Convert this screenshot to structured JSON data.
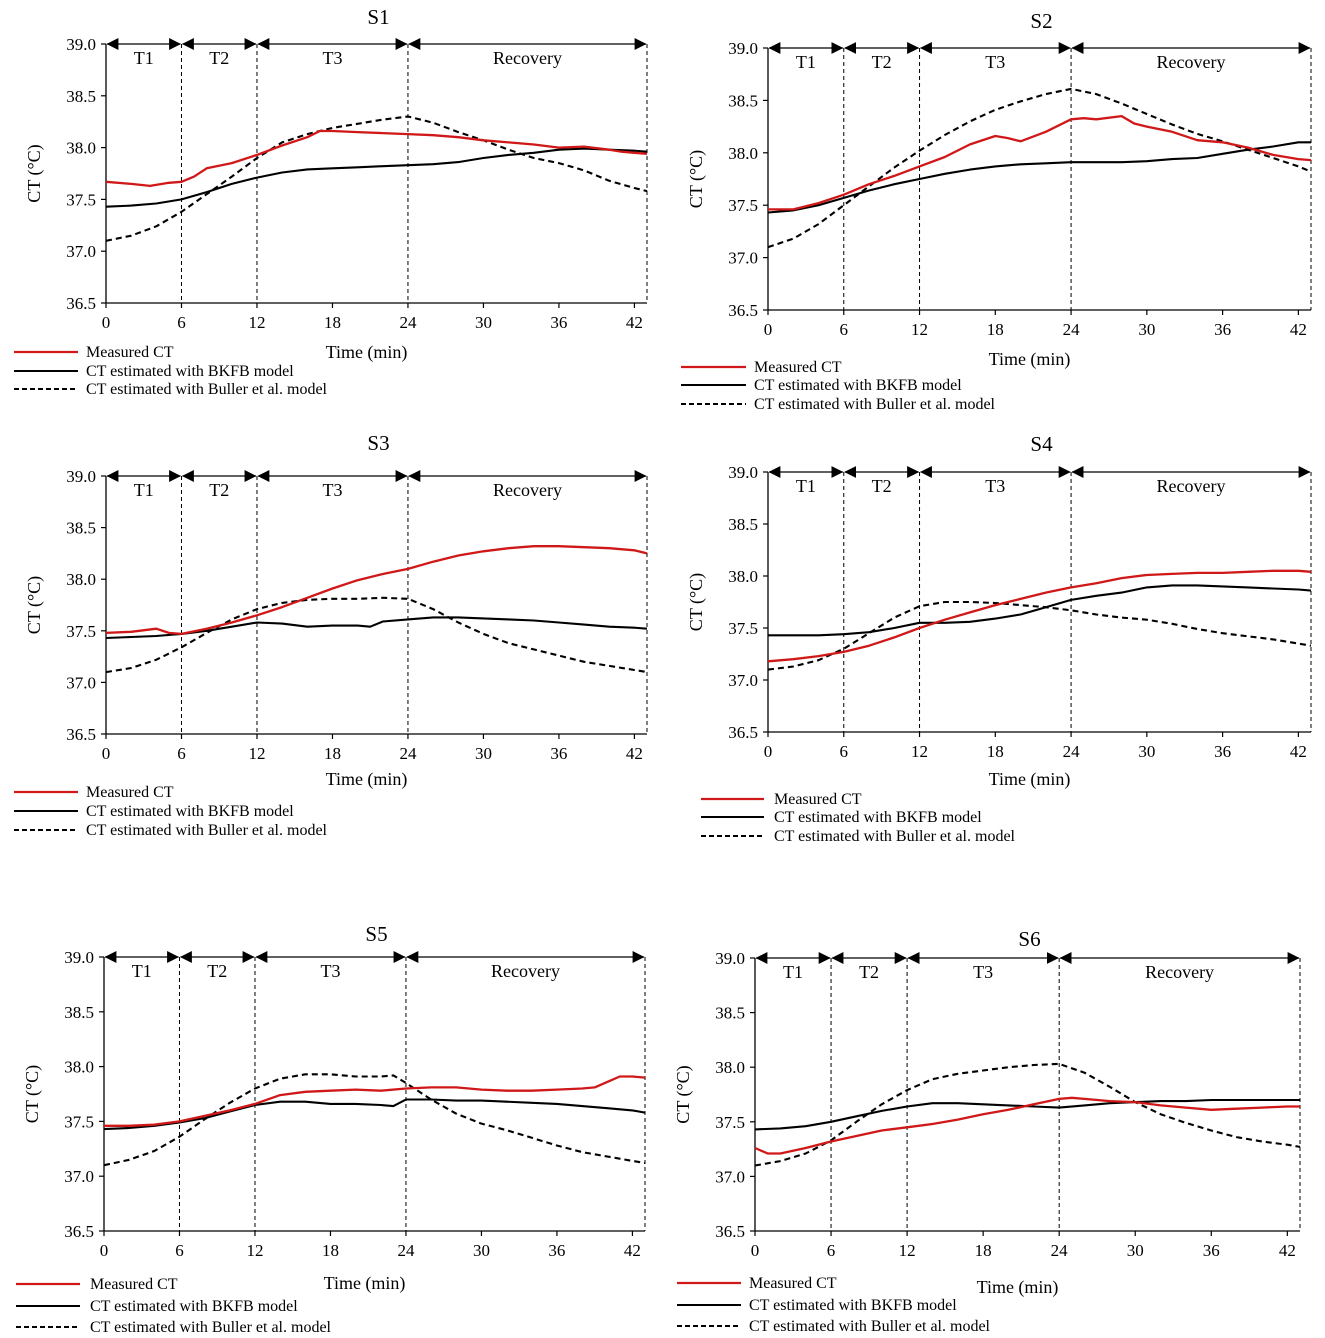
{
  "figure": {
    "x_ticks": [
      0,
      6,
      12,
      18,
      24,
      30,
      36,
      42
    ],
    "y_ticks": [
      "36.5",
      "37.0",
      "37.5",
      "38.0",
      "38.5",
      "39.0"
    ],
    "phase_bounds": [
      0,
      6,
      12,
      24,
      43
    ],
    "phases": [
      "T1",
      "T2",
      "T3",
      "Recovery"
    ],
    "colors": {
      "measured": "#d01818",
      "bkfb": "#000000",
      "buller": "#000000"
    }
  },
  "chart_data": [
    {
      "type": "line",
      "title": "S1",
      "xlabel": "Time (min)",
      "ylabel": "CT (°C)",
      "xlim": [
        0,
        43
      ],
      "ylim": [
        36.5,
        39.0
      ],
      "legend": [
        "Measured CT",
        "CT estimated with BKFB model",
        "CT estimated with Buller et al. model"
      ],
      "series": [
        {
          "name": "Measured CT",
          "x": [
            0,
            2,
            3.5,
            5,
            6,
            7,
            8,
            10,
            12,
            14,
            16,
            17,
            18,
            20,
            22,
            24,
            26,
            28,
            30,
            32,
            34,
            36,
            38,
            40,
            41,
            42,
            43
          ],
          "y": [
            37.67,
            37.65,
            37.63,
            37.66,
            37.67,
            37.72,
            37.8,
            37.85,
            37.93,
            38.02,
            38.1,
            38.16,
            38.16,
            38.15,
            38.14,
            38.13,
            38.12,
            38.1,
            38.07,
            38.05,
            38.03,
            38.0,
            38.01,
            37.98,
            37.96,
            37.95,
            37.94
          ]
        },
        {
          "name": "CT estimated with BKFB model",
          "x": [
            0,
            2,
            4,
            6,
            8,
            10,
            12,
            14,
            16,
            18,
            20,
            22,
            24,
            26,
            28,
            30,
            32,
            34,
            36,
            38,
            40,
            42,
            43
          ],
          "y": [
            37.43,
            37.44,
            37.46,
            37.5,
            37.57,
            37.65,
            37.71,
            37.76,
            37.79,
            37.8,
            37.81,
            37.82,
            37.83,
            37.84,
            37.86,
            37.9,
            37.93,
            37.95,
            37.98,
            37.99,
            37.98,
            37.97,
            37.96
          ]
        },
        {
          "name": "CT estimated with Buller et al. model",
          "x": [
            0,
            2,
            4,
            6,
            8,
            10,
            12,
            14,
            16,
            18,
            20,
            22,
            24,
            26,
            28,
            30,
            32,
            34,
            36,
            38,
            40,
            42,
            43
          ],
          "y": [
            37.1,
            37.15,
            37.24,
            37.38,
            37.55,
            37.72,
            37.9,
            38.05,
            38.13,
            38.19,
            38.23,
            38.27,
            38.3,
            38.24,
            38.15,
            38.07,
            37.98,
            37.9,
            37.85,
            37.78,
            37.68,
            37.61,
            37.58
          ]
        }
      ]
    },
    {
      "type": "line",
      "title": "S2",
      "xlabel": "Time (min)",
      "ylabel": "CT (°C)",
      "xlim": [
        0,
        43
      ],
      "ylim": [
        36.5,
        39.0
      ],
      "legend": [
        "Measured CT",
        "CT estimated with BKFB model",
        "CT estimated with Buller et al. model"
      ],
      "series": [
        {
          "name": "Measured CT",
          "x": [
            0,
            2,
            4,
            6,
            8,
            10,
            12,
            14,
            16,
            18,
            19,
            20,
            22,
            24,
            25,
            26,
            28,
            29,
            30,
            32,
            34,
            36,
            38,
            40,
            42,
            43
          ],
          "y": [
            37.46,
            37.46,
            37.52,
            37.6,
            37.7,
            37.78,
            37.87,
            37.96,
            38.08,
            38.16,
            38.14,
            38.11,
            38.2,
            38.32,
            38.33,
            38.32,
            38.35,
            38.28,
            38.25,
            38.2,
            38.12,
            38.1,
            38.05,
            37.98,
            37.94,
            37.93
          ]
        },
        {
          "name": "CT estimated with BKFB model",
          "x": [
            0,
            2,
            4,
            6,
            8,
            10,
            12,
            14,
            16,
            18,
            20,
            22,
            24,
            26,
            28,
            30,
            32,
            34,
            36,
            38,
            40,
            42,
            43
          ],
          "y": [
            37.43,
            37.45,
            37.5,
            37.57,
            37.64,
            37.7,
            37.75,
            37.8,
            37.84,
            37.87,
            37.89,
            37.9,
            37.91,
            37.91,
            37.91,
            37.92,
            37.94,
            37.95,
            37.99,
            38.03,
            38.06,
            38.1,
            38.1
          ]
        },
        {
          "name": "CT estimated with Buller et al. model",
          "x": [
            0,
            2,
            4,
            6,
            8,
            10,
            12,
            14,
            16,
            18,
            20,
            22,
            24,
            26,
            28,
            30,
            32,
            34,
            36,
            38,
            40,
            42,
            43
          ],
          "y": [
            37.1,
            37.18,
            37.32,
            37.5,
            37.68,
            37.86,
            38.02,
            38.17,
            38.3,
            38.41,
            38.49,
            38.56,
            38.61,
            38.56,
            38.47,
            38.37,
            38.27,
            38.18,
            38.11,
            38.03,
            37.95,
            37.87,
            37.82
          ]
        }
      ]
    },
    {
      "type": "line",
      "title": "S3",
      "xlabel": "Time (min)",
      "ylabel": "CT (°C)",
      "xlim": [
        0,
        43
      ],
      "ylim": [
        36.5,
        39.0
      ],
      "legend": [
        "Measured CT",
        "CT estimated with BKFB model",
        "CT estimated with Buller et al. model"
      ],
      "series": [
        {
          "name": "Measured CT",
          "x": [
            0,
            2,
            4,
            5,
            6,
            8,
            10,
            12,
            14,
            16,
            18,
            20,
            22,
            24,
            26,
            28,
            30,
            32,
            34,
            36,
            38,
            40,
            42,
            43
          ],
          "y": [
            37.48,
            37.49,
            37.52,
            37.48,
            37.47,
            37.52,
            37.58,
            37.65,
            37.73,
            37.82,
            37.91,
            37.99,
            38.05,
            38.1,
            38.17,
            38.23,
            38.27,
            38.3,
            38.32,
            38.32,
            38.31,
            38.3,
            38.28,
            38.25
          ]
        },
        {
          "name": "CT estimated with BKFB model",
          "x": [
            0,
            2,
            4,
            6,
            8,
            10,
            12,
            14,
            16,
            18,
            20,
            21,
            22,
            24,
            26,
            28,
            30,
            32,
            34,
            36,
            38,
            40,
            42,
            43
          ],
          "y": [
            37.43,
            37.44,
            37.45,
            37.47,
            37.5,
            37.54,
            37.58,
            37.57,
            37.54,
            37.55,
            37.55,
            37.54,
            37.59,
            37.61,
            37.63,
            37.63,
            37.62,
            37.61,
            37.6,
            37.58,
            37.56,
            37.54,
            37.53,
            37.52
          ]
        },
        {
          "name": "CT estimated with Buller et al. model",
          "x": [
            0,
            2,
            4,
            6,
            8,
            10,
            12,
            14,
            16,
            18,
            20,
            22,
            24,
            26,
            28,
            30,
            32,
            34,
            36,
            38,
            40,
            42,
            43
          ],
          "y": [
            37.1,
            37.14,
            37.22,
            37.34,
            37.48,
            37.61,
            37.71,
            37.77,
            37.8,
            37.81,
            37.81,
            37.82,
            37.81,
            37.71,
            37.58,
            37.47,
            37.38,
            37.32,
            37.26,
            37.2,
            37.16,
            37.12,
            37.1
          ]
        }
      ]
    },
    {
      "type": "line",
      "title": "S4",
      "xlabel": "Time (min)",
      "ylabel": "CT (°C)",
      "xlim": [
        0,
        43
      ],
      "ylim": [
        36.5,
        39.0
      ],
      "legend": [
        "Measured CT",
        "CT estimated with BKFB model",
        "CT estimated with Buller et al. model"
      ],
      "series": [
        {
          "name": "Measured CT",
          "x": [
            0,
            2,
            4,
            6,
            8,
            10,
            12,
            14,
            16,
            18,
            20,
            22,
            24,
            26,
            28,
            30,
            32,
            34,
            36,
            38,
            40,
            42,
            43
          ],
          "y": [
            37.18,
            37.2,
            37.23,
            37.27,
            37.33,
            37.41,
            37.5,
            37.58,
            37.65,
            37.72,
            37.78,
            37.84,
            37.89,
            37.93,
            37.98,
            38.01,
            38.02,
            38.03,
            38.03,
            38.04,
            38.05,
            38.05,
            38.04
          ]
        },
        {
          "name": "CT estimated with BKFB model",
          "x": [
            0,
            2,
            4,
            6,
            8,
            10,
            12,
            14,
            16,
            18,
            20,
            22,
            24,
            26,
            28,
            30,
            32,
            34,
            36,
            38,
            40,
            42,
            43
          ],
          "y": [
            37.43,
            37.43,
            37.43,
            37.44,
            37.46,
            37.5,
            37.55,
            37.55,
            37.56,
            37.59,
            37.63,
            37.7,
            37.77,
            37.81,
            37.84,
            37.89,
            37.91,
            37.91,
            37.9,
            37.89,
            37.88,
            37.87,
            37.86
          ]
        },
        {
          "name": "CT estimated with Buller et al. model",
          "x": [
            0,
            2,
            4,
            6,
            8,
            10,
            12,
            14,
            16,
            18,
            20,
            22,
            24,
            26,
            28,
            30,
            32,
            34,
            36,
            38,
            40,
            42,
            43
          ],
          "y": [
            37.1,
            37.13,
            37.19,
            37.3,
            37.45,
            37.6,
            37.71,
            37.75,
            37.75,
            37.74,
            37.72,
            37.7,
            37.67,
            37.63,
            37.6,
            37.58,
            37.54,
            37.49,
            37.45,
            37.42,
            37.39,
            37.35,
            37.33
          ]
        }
      ]
    },
    {
      "type": "line",
      "title": "S5",
      "xlabel": "Time (min)",
      "ylabel": "CT (°C)",
      "xlim": [
        0,
        43
      ],
      "ylim": [
        36.5,
        39.0
      ],
      "legend": [
        "Measured CT",
        "CT estimated with BKFB model",
        "CT estimated with Buller et al. model"
      ],
      "series": [
        {
          "name": "Measured CT",
          "x": [
            0,
            2,
            4,
            6,
            8,
            10,
            12,
            14,
            16,
            18,
            20,
            22,
            24,
            26,
            28,
            30,
            32,
            34,
            36,
            38,
            39,
            40,
            41,
            42,
            43
          ],
          "y": [
            37.46,
            37.46,
            37.47,
            37.5,
            37.55,
            37.6,
            37.66,
            37.74,
            37.77,
            37.78,
            37.79,
            37.78,
            37.8,
            37.81,
            37.81,
            37.79,
            37.78,
            37.78,
            37.79,
            37.8,
            37.81,
            37.86,
            37.91,
            37.91,
            37.9
          ]
        },
        {
          "name": "CT estimated with BKFB model",
          "x": [
            0,
            2,
            4,
            6,
            8,
            10,
            12,
            14,
            16,
            18,
            20,
            22,
            23,
            24,
            26,
            28,
            30,
            32,
            34,
            36,
            38,
            40,
            42,
            43
          ],
          "y": [
            37.43,
            37.44,
            37.46,
            37.49,
            37.53,
            37.59,
            37.65,
            37.68,
            37.68,
            37.66,
            37.66,
            37.65,
            37.64,
            37.7,
            37.7,
            37.69,
            37.69,
            37.68,
            37.67,
            37.66,
            37.64,
            37.62,
            37.6,
            37.58
          ]
        },
        {
          "name": "CT estimated with Buller et al. model",
          "x": [
            0,
            2,
            4,
            6,
            8,
            10,
            12,
            14,
            16,
            18,
            20,
            22,
            23,
            24,
            26,
            28,
            30,
            32,
            34,
            36,
            38,
            40,
            42,
            43
          ],
          "y": [
            37.1,
            37.15,
            37.23,
            37.36,
            37.52,
            37.67,
            37.8,
            37.89,
            37.93,
            37.93,
            37.91,
            37.91,
            37.92,
            37.85,
            37.7,
            37.57,
            37.48,
            37.42,
            37.35,
            37.28,
            37.22,
            37.18,
            37.14,
            37.12
          ]
        }
      ]
    },
    {
      "type": "line",
      "title": "S6",
      "xlabel": "Time (min)",
      "ylabel": "CT (°C)",
      "xlim": [
        0,
        43
      ],
      "ylim": [
        36.5,
        39.0
      ],
      "legend": [
        "Measured CT",
        "CT estimated with BKFB model",
        "CT estimated with Buller et al. model"
      ],
      "series": [
        {
          "name": "Measured CT",
          "x": [
            0,
            1,
            2,
            4,
            6,
            8,
            10,
            12,
            14,
            16,
            18,
            20,
            22,
            24,
            25,
            26,
            28,
            30,
            32,
            34,
            36,
            38,
            40,
            42,
            43
          ],
          "y": [
            37.26,
            37.21,
            37.21,
            37.26,
            37.32,
            37.37,
            37.42,
            37.45,
            37.48,
            37.52,
            37.57,
            37.61,
            37.66,
            37.71,
            37.72,
            37.71,
            37.69,
            37.68,
            37.65,
            37.63,
            37.61,
            37.62,
            37.63,
            37.64,
            37.64
          ]
        },
        {
          "name": "CT estimated with BKFB model",
          "x": [
            0,
            2,
            4,
            6,
            8,
            10,
            12,
            14,
            16,
            18,
            20,
            22,
            24,
            26,
            28,
            30,
            32,
            34,
            36,
            38,
            40,
            42,
            43
          ],
          "y": [
            37.43,
            37.44,
            37.46,
            37.5,
            37.55,
            37.6,
            37.64,
            37.67,
            37.67,
            37.66,
            37.65,
            37.64,
            37.63,
            37.65,
            37.67,
            37.68,
            37.69,
            37.69,
            37.7,
            37.7,
            37.7,
            37.7,
            37.7
          ]
        },
        {
          "name": "CT estimated with Buller et al. model",
          "x": [
            0,
            2,
            4,
            6,
            8,
            10,
            12,
            14,
            16,
            18,
            20,
            22,
            24,
            26,
            28,
            30,
            32,
            34,
            36,
            38,
            40,
            42,
            43
          ],
          "y": [
            37.1,
            37.14,
            37.21,
            37.33,
            37.5,
            37.66,
            37.79,
            37.89,
            37.94,
            37.97,
            38.0,
            38.02,
            38.03,
            37.95,
            37.82,
            37.68,
            37.57,
            37.49,
            37.42,
            37.36,
            37.32,
            37.29,
            37.27
          ]
        }
      ]
    }
  ]
}
